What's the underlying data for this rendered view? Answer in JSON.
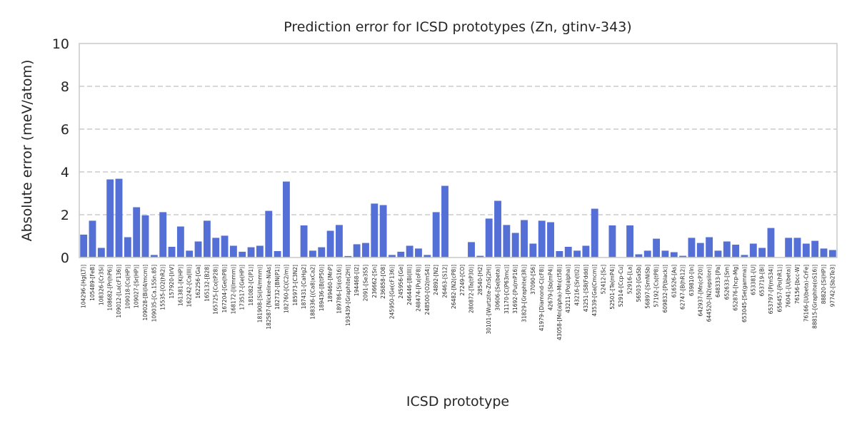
{
  "chart_data": {
    "type": "bar",
    "title": "Prediction error for ICSD prototypes (Zn, gtinv-343)",
    "xlabel": "ICSD prototype",
    "ylabel": "Absolute error (meV/atom)",
    "ylim": [
      0,
      10
    ],
    "yticks": [
      0,
      2,
      4,
      6,
      8,
      10
    ],
    "grid": "y, dashed",
    "bar_color": "#5470d6",
    "categories": [
      "104296-[Hg(LT)]",
      "105489-[FeB]",
      "108326-[Cr3Si]",
      "108682-[Pr(hP6)]",
      "109012-[La(cF136)]",
      "109018-[Cs(HP)]",
      "109027-[Sr(HP)]",
      "109028-[Bi(I4/mcm)]",
      "109035-[Ca.15Sn.85]",
      "15535-[O2(hR2)]",
      "157920-[IrV]",
      "161381-[K(HP)]",
      "162242-[Ca(III)]",
      "162256-[Ga]",
      "165132-[B28]",
      "165725-[Co(tP28)]",
      "167204-[Ge(hP8)]",
      "168172-[I(Immm)]",
      "173517-[Ge(HP)]",
      "181082-[C(P1)]",
      "181908-[Si(I4/mmm)]",
      "182587-[Nickeline-NiAs]",
      "182732-[BN(P1)]",
      "182760-[C(C2/m)]",
      "185973-[C3N2]",
      "187431-[CaHg2]",
      "188336-[(Ca8)xCa2]",
      "189436-[B(tP50)]",
      "189460-[MnP]",
      "189786-[Si(oS16)]",
      "193439-[Graphite(2H)]",
      "194468-[I2]",
      "2091-[Se3S5]",
      "236662-[Sn]",
      "236858-[O8]",
      "245950-[Ge(cF136)]",
      "245956-[Ge]",
      "246446-[Bi(III)]",
      "248474-[Pu(oF8)]",
      "248500-[O2(mS4)]",
      "24892-[N2]",
      "26463-[S12]",
      "26482-[N2(cP8)]",
      "27249-[CO]",
      "280872-[Ta(tP30)]",
      "28540-[H2]",
      "30101-[Wurtzite-ZnS(2H)]",
      "30606-[Se(beta)]",
      "31170-[C(P63mc)]",
      "31692-[Pu(mP16)]",
      "31829-[Graphite(3R)]",
      "37090-[S6]",
      "41979-[Diamond-C(cF8)]",
      "42679-[Sb(mP4)]",
      "43058-[Mn(alpha)-Mn(cI58)]",
      "43211-[Po(alpha)]",
      "43216-[Sn(tI2)]",
      "43251-[S8(Fddd)]",
      "43539-[Ga(Cmcm)]",
      "52412-[Sc]",
      "52501-[Te(mP4)]",
      "52914-[Ccp-Cu]",
      "52916-[La]",
      "56503-[GaSb]",
      "56897-[SmNiSb]",
      "57192-[Cs(tP8)]",
      "609832-[P(black)]",
      "616526-[As]",
      "62747-[B(hR12)]",
      "639810-[In]",
      "642937-[Mn(cP20)]",
      "644520-[N2(epsilon)]",
      "648333-[Pa]",
      "652633-[Sm]",
      "652876-[hcp-Mg]",
      "653045-[Se(gamma)]",
      "653381-[U]",
      "653719-[Bi]",
      "653797-[P(mS34)]",
      "656457-[Po(hR1)]",
      "76041-[U(beta)]",
      "76156-[bcc-W]",
      "76166-[U(beta)-CrFe]",
      "88815-[Graphite(oS16)]",
      "88820-[Si(HP)]",
      "97742-[Sb2Te3]"
    ],
    "values": [
      1.07,
      1.72,
      0.45,
      3.65,
      3.68,
      0.95,
      2.35,
      1.97,
      0.12,
      2.12,
      0.5,
      1.45,
      0.32,
      0.75,
      1.72,
      0.92,
      1.02,
      0.55,
      0.27,
      0.48,
      0.55,
      2.18,
      0.3,
      3.55,
      0.0,
      1.5,
      0.32,
      0.48,
      1.25,
      1.52,
      0.07,
      0.62,
      0.68,
      2.52,
      2.45,
      0.12,
      0.27,
      0.55,
      0.42,
      0.12,
      2.12,
      3.35,
      0.0,
      0.0,
      0.72,
      0.08,
      1.82,
      2.65,
      1.52,
      1.15,
      1.75,
      0.65,
      1.72,
      1.65,
      0.3,
      0.5,
      0.32,
      0.55,
      2.28,
      0.0,
      1.5,
      0.0,
      1.5,
      0.15,
      0.32,
      0.88,
      0.32,
      0.25,
      0.08,
      0.92,
      0.68,
      0.95,
      0.32,
      0.75,
      0.6,
      0.12,
      0.65,
      0.45,
      1.38,
      0.0,
      0.92,
      0.92,
      0.65,
      0.78,
      0.42,
      0.35
    ]
  }
}
